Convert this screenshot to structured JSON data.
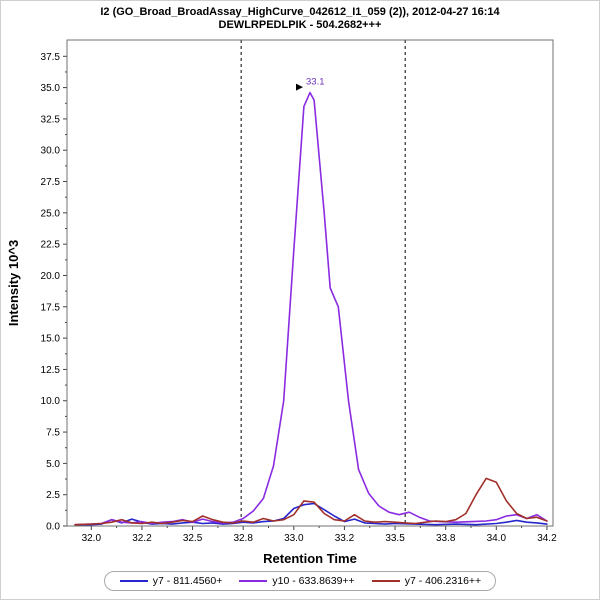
{
  "window": {
    "background": "#ffffff",
    "border_color": "#cfcfcf"
  },
  "chart_data": {
    "type": "line",
    "title": "I2 (GO_Broad_BroadAssay_HighCurve_042612_I1_059 (2)), 2012-04-27 16:14",
    "subtitle": "DEWLRPEDLPIK - 504.2682+++",
    "xlabel": "Retention Time",
    "ylabel": "Intensity 10^3",
    "xlim": [
      31.88,
      34.28
    ],
    "ylim": [
      0,
      38.8
    ],
    "grid": false,
    "legend_position": "bottom",
    "x_ticks": {
      "values": [
        32.0,
        32.25,
        32.5,
        32.75,
        33.0,
        33.25,
        33.5,
        33.75,
        34.0,
        34.25
      ],
      "labels": [
        "32.0",
        "32.2",
        "32.5",
        "32.8",
        "33.0",
        "33.2",
        "33.5",
        "33.8",
        "34.0",
        "34.2"
      ]
    },
    "y_ticks": {
      "values": [
        0,
        2.5,
        5,
        7.5,
        10,
        12.5,
        15,
        17.5,
        20,
        22.5,
        25,
        27.5,
        30,
        32.5,
        35,
        37.5
      ],
      "labels": [
        "0.0",
        "2.5",
        "5.0",
        "7.5",
        "10.0",
        "12.5",
        "15.0",
        "17.5",
        "20.0",
        "22.5",
        "25.0",
        "27.5",
        "30.0",
        "32.5",
        "35.0",
        "37.5"
      ]
    },
    "integration_boundaries": {
      "values": [
        32.74,
        33.55
      ],
      "style": "dashed",
      "color": "#000000"
    },
    "annotation": {
      "text": "33.1",
      "x": 33.08,
      "y": 34.6,
      "color": "#6a2fbe",
      "pointer_color": "#000000"
    },
    "series": [
      {
        "id": "y7-811",
        "name": "y7 - 811.4560+",
        "color": "#2626cc",
        "x": [
          31.92,
          32.0,
          32.05,
          32.1,
          32.15,
          32.2,
          32.25,
          32.3,
          32.35,
          32.4,
          32.45,
          32.5,
          32.55,
          32.6,
          32.65,
          32.7,
          32.75,
          32.8,
          32.85,
          32.9,
          32.95,
          33.0,
          33.05,
          33.1,
          33.15,
          33.2,
          33.25,
          33.3,
          33.35,
          33.4,
          33.45,
          33.5,
          33.6,
          33.7,
          33.8,
          33.9,
          34.0,
          34.05,
          34.1,
          34.15,
          34.2,
          34.25
        ],
        "y": [
          0.05,
          0.1,
          0.15,
          0.5,
          0.25,
          0.55,
          0.3,
          0.15,
          0.2,
          0.15,
          0.25,
          0.3,
          0.2,
          0.25,
          0.15,
          0.2,
          0.3,
          0.25,
          0.35,
          0.4,
          0.6,
          1.4,
          1.7,
          1.8,
          1.3,
          0.8,
          0.35,
          0.55,
          0.25,
          0.2,
          0.15,
          0.2,
          0.15,
          0.1,
          0.15,
          0.1,
          0.2,
          0.3,
          0.45,
          0.3,
          0.25,
          0.15
        ]
      },
      {
        "id": "y10-633",
        "name": "y10 - 633.8639++",
        "color": "#8a2be2",
        "x": [
          31.92,
          32.0,
          32.05,
          32.1,
          32.15,
          32.2,
          32.25,
          32.3,
          32.35,
          32.4,
          32.45,
          32.5,
          32.55,
          32.6,
          32.65,
          32.7,
          32.75,
          32.8,
          32.85,
          32.9,
          32.95,
          33.0,
          33.05,
          33.08,
          33.1,
          33.15,
          33.18,
          33.22,
          33.27,
          33.32,
          33.37,
          33.42,
          33.47,
          33.52,
          33.57,
          33.62,
          33.67,
          33.72,
          33.8,
          33.88,
          33.95,
          34.0,
          34.05,
          34.1,
          34.15,
          34.2,
          34.25
        ],
        "y": [
          0.1,
          0.15,
          0.2,
          0.5,
          0.3,
          0.25,
          0.35,
          0.2,
          0.3,
          0.35,
          0.5,
          0.3,
          0.55,
          0.35,
          0.25,
          0.3,
          0.6,
          1.2,
          2.2,
          4.8,
          10.0,
          22.0,
          33.5,
          34.6,
          34.0,
          25.0,
          19.0,
          17.5,
          10.0,
          4.5,
          2.6,
          1.6,
          1.1,
          0.9,
          1.1,
          0.7,
          0.4,
          0.35,
          0.3,
          0.35,
          0.4,
          0.5,
          0.8,
          0.9,
          0.6,
          0.9,
          0.4
        ]
      },
      {
        "id": "y7-406",
        "name": "y7 - 406.2316++",
        "color": "#a1302a",
        "x": [
          31.92,
          32.0,
          32.05,
          32.1,
          32.15,
          32.2,
          32.25,
          32.3,
          32.35,
          32.4,
          32.45,
          32.5,
          32.55,
          32.6,
          32.65,
          32.7,
          32.75,
          32.8,
          32.85,
          32.9,
          32.95,
          33.0,
          33.05,
          33.1,
          33.15,
          33.2,
          33.25,
          33.3,
          33.35,
          33.4,
          33.45,
          33.5,
          33.55,
          33.6,
          33.65,
          33.7,
          33.75,
          33.8,
          33.85,
          33.9,
          33.95,
          34.0,
          34.05,
          34.1,
          34.15,
          34.2,
          34.25
        ],
        "y": [
          0.1,
          0.15,
          0.2,
          0.3,
          0.5,
          0.25,
          0.2,
          0.3,
          0.2,
          0.3,
          0.45,
          0.35,
          0.8,
          0.5,
          0.3,
          0.25,
          0.4,
          0.3,
          0.6,
          0.4,
          0.5,
          0.9,
          2.0,
          1.9,
          1.0,
          0.5,
          0.4,
          0.9,
          0.4,
          0.3,
          0.35,
          0.3,
          0.25,
          0.2,
          0.3,
          0.4,
          0.35,
          0.5,
          1.0,
          2.5,
          3.8,
          3.5,
          2.0,
          1.0,
          0.6,
          0.7,
          0.4
        ]
      }
    ]
  }
}
